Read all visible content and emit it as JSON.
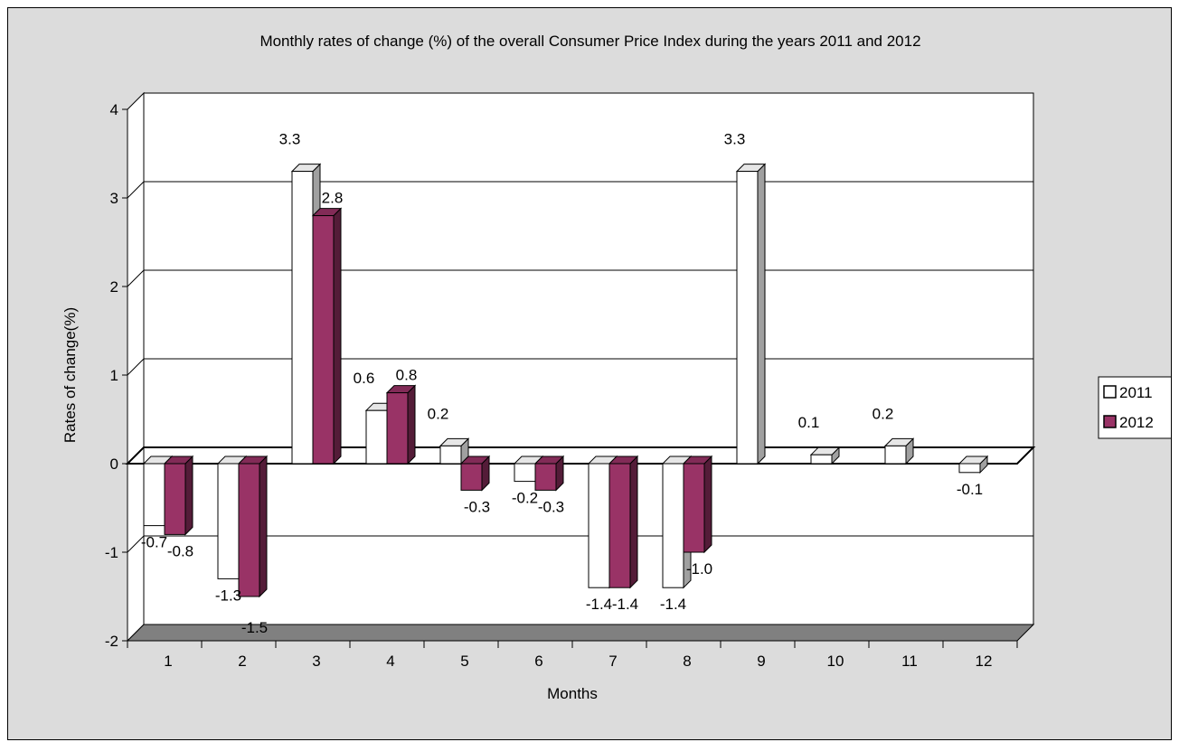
{
  "chart_data": {
    "type": "bar",
    "title": "Monthly rates of change (%) of the overall Consumer Price Index during the years 2011 and 2012",
    "xlabel": "Months",
    "ylabel": "Rates of change(%)",
    "ylim": [
      -2,
      4
    ],
    "yticks": [
      "-2",
      "-1",
      "0",
      "1",
      "2",
      "3",
      "4"
    ],
    "categories": [
      "1",
      "2",
      "3",
      "4",
      "5",
      "6",
      "7",
      "8",
      "9",
      "10",
      "11",
      "12"
    ],
    "series": [
      {
        "name": "2011",
        "color": "#ffffff",
        "values": [
          -0.7,
          -1.3,
          3.3,
          0.6,
          0.2,
          -0.2,
          -1.4,
          -1.4,
          3.3,
          0.1,
          0.2,
          -0.1
        ],
        "labels": [
          "-0.7",
          "-1.3",
          "3.3",
          "0.6",
          "0.2",
          "-0.2",
          "-1.4",
          "-1.4",
          "3.3",
          "0.1",
          "0.2",
          "-0.1"
        ]
      },
      {
        "name": "2012",
        "color": "#993366",
        "values": [
          -0.8,
          -1.5,
          2.8,
          0.8,
          -0.3,
          -0.3,
          -1.4,
          -1.0,
          null,
          null,
          null,
          null
        ],
        "labels": [
          "-0.8",
          "-1.5",
          "2.8",
          "0.8",
          "-0.3",
          "-0.3",
          "-1.4",
          "-1.0",
          null,
          null,
          null,
          null
        ]
      }
    ],
    "grid": true,
    "legend": "right",
    "style": "3d-clustered-column"
  }
}
